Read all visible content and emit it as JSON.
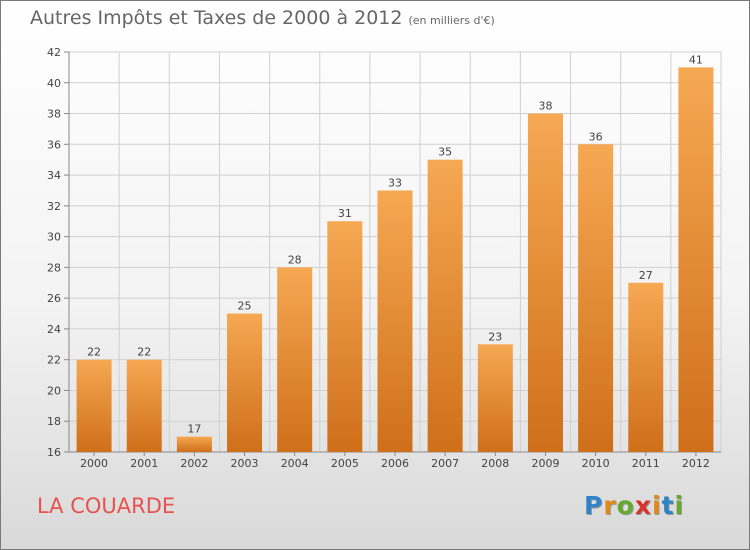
{
  "title": "Autres Impôts et Taxes de 2000 à 2012",
  "unit_note": "(en milliers d'€)",
  "commune": "LA COUARDE",
  "logo": {
    "letters": [
      "P",
      "r",
      "o",
      "x",
      "i",
      "t",
      "i"
    ],
    "colors": [
      "#2f83c6",
      "#e08a1c",
      "#66a832",
      "#d9342b",
      "#e08a1c",
      "#2f83c6",
      "#66a832"
    ]
  },
  "colors": {
    "bar_top": "#f6a852",
    "bar_bottom": "#cf6f1a",
    "grid": "#d0d0d0",
    "text": "#444444",
    "commune": "#e8524e"
  },
  "chart_data": {
    "type": "bar",
    "categories": [
      "2000",
      "2001",
      "2002",
      "2003",
      "2004",
      "2005",
      "2006",
      "2007",
      "2008",
      "2009",
      "2010",
      "2011",
      "2012"
    ],
    "values": [
      22,
      22,
      17,
      25,
      28,
      31,
      33,
      35,
      23,
      38,
      36,
      27,
      41
    ],
    "title": "Autres Impôts et Taxes de 2000 à 2012",
    "ylim": [
      16,
      42
    ],
    "yticks": [
      16,
      18,
      20,
      22,
      24,
      26,
      28,
      30,
      32,
      34,
      36,
      38,
      40,
      42
    ],
    "grid": true,
    "legend": "none"
  }
}
